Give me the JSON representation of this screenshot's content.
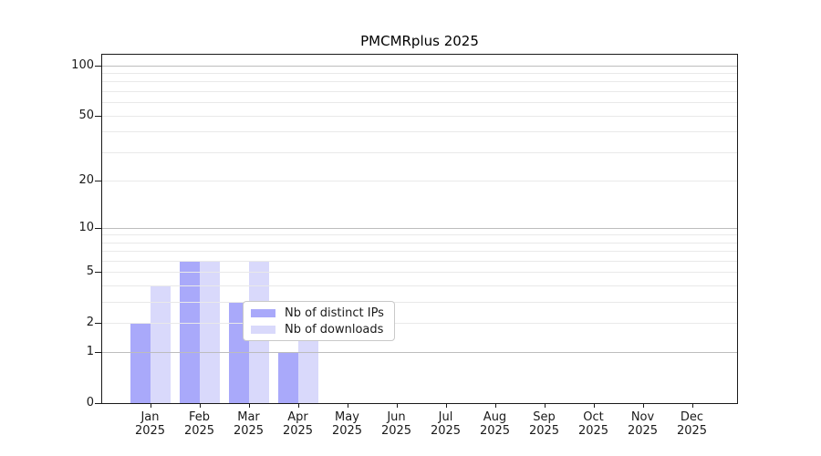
{
  "chart_data": {
    "type": "bar",
    "title": "PMCMRplus 2025",
    "categories": [
      "Jan 2025",
      "Feb 2025",
      "Mar 2025",
      "Apr 2025",
      "May 2025",
      "Jun 2025",
      "Jul 2025",
      "Aug 2025",
      "Sep 2025",
      "Oct 2025",
      "Nov 2025",
      "Dec 2025"
    ],
    "series": [
      {
        "name": "Nb of distinct IPs",
        "color": "#a9a9fa",
        "values": [
          2,
          6,
          3,
          1,
          0,
          0,
          0,
          0,
          0,
          0,
          0,
          0
        ]
      },
      {
        "name": "Nb of downloads",
        "color": "#d9d9fb",
        "values": [
          4,
          6,
          6,
          2,
          0,
          0,
          0,
          0,
          0,
          0,
          0,
          0
        ]
      }
    ],
    "xlabel": "",
    "ylabel": "",
    "y_axis": {
      "scale": "log1p",
      "max": 116,
      "ticks": [
        {
          "value": 0,
          "label": "0"
        },
        {
          "value": 1,
          "label": "1"
        },
        {
          "value": 2,
          "label": "2"
        },
        {
          "value": 5,
          "label": "5"
        },
        {
          "value": 10,
          "label": "10"
        },
        {
          "value": 20,
          "label": "20"
        },
        {
          "value": 50,
          "label": "50"
        },
        {
          "value": 100,
          "label": "100"
        }
      ],
      "major_grid": [
        1,
        10,
        100
      ],
      "minor_grid": [
        2,
        3,
        4,
        5,
        6,
        7,
        8,
        9,
        20,
        30,
        40,
        50,
        60,
        70,
        80,
        90
      ],
      "major_grid_color": "#bdbdbd",
      "minor_grid_color": "#e9e9e9"
    },
    "legend": {
      "position": "inside-bottom-center"
    },
    "grid": "on"
  },
  "colors": {
    "background": "#ffffff",
    "spine": "#1a1a1a",
    "text": "#1a1a1a"
  }
}
